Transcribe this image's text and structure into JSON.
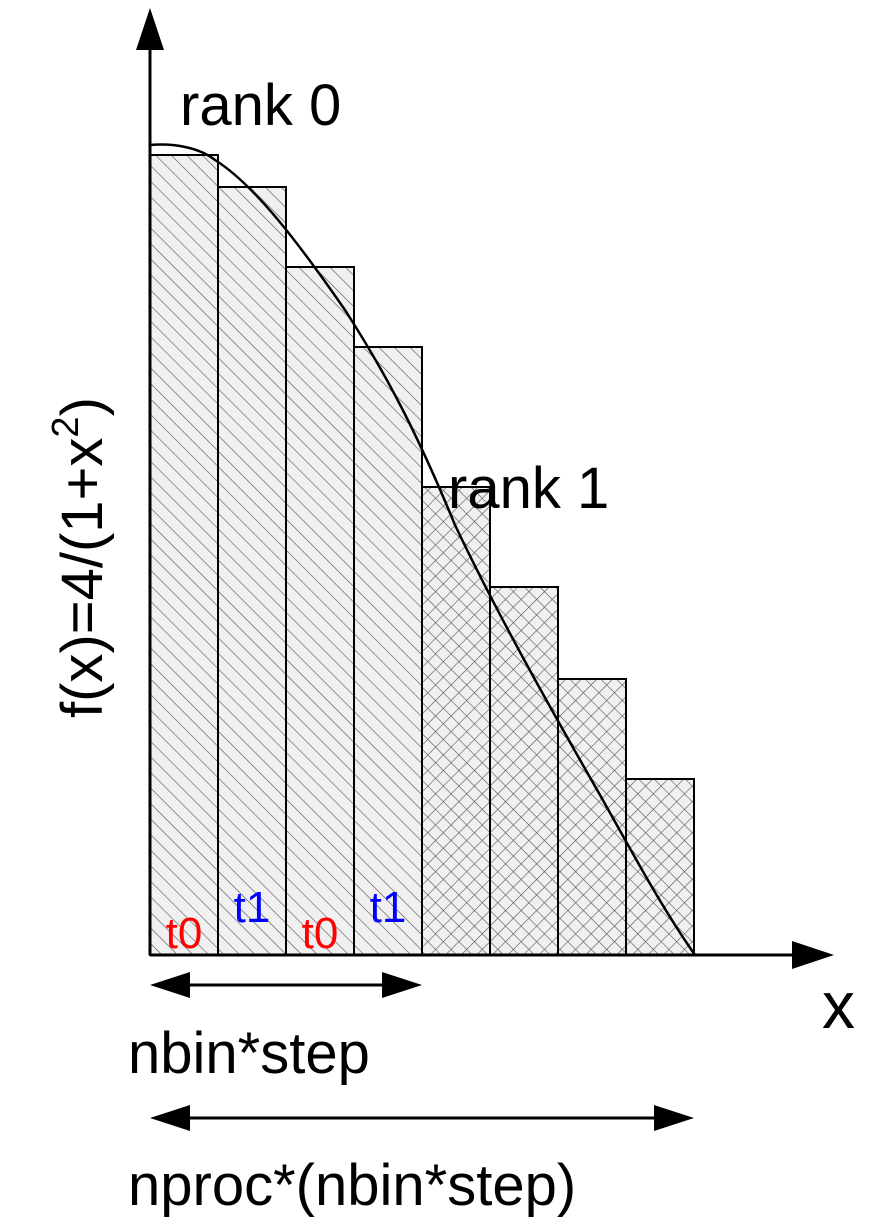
{
  "labels": {
    "rank0": "rank 0",
    "rank1": "rank 1",
    "xaxis": "x",
    "yaxis_main": "f(x)=4/(1+x",
    "yaxis_sup": "2",
    "yaxis_close": ")",
    "span_short": "nbin*step",
    "span_long": "nproc*(nbin*step)"
  },
  "bars": [
    {
      "rank": 0,
      "thread": "t0",
      "value": 4.0
    },
    {
      "rank": 0,
      "thread": "t1",
      "value": 3.84
    },
    {
      "rank": 0,
      "thread": "t0",
      "value": 3.44
    },
    {
      "rank": 0,
      "thread": "t1",
      "value": 3.04
    },
    {
      "rank": 1,
      "thread": "",
      "value": 2.34
    },
    {
      "rank": 1,
      "thread": "",
      "value": 1.84
    },
    {
      "rank": 1,
      "thread": "",
      "value": 1.38
    },
    {
      "rank": 1,
      "thread": "",
      "value": 0.88
    }
  ],
  "colors": {
    "t0": "#ff0000",
    "t1": "#0000ff",
    "stroke": "#000000",
    "fill": "#f0f0f0"
  }
}
